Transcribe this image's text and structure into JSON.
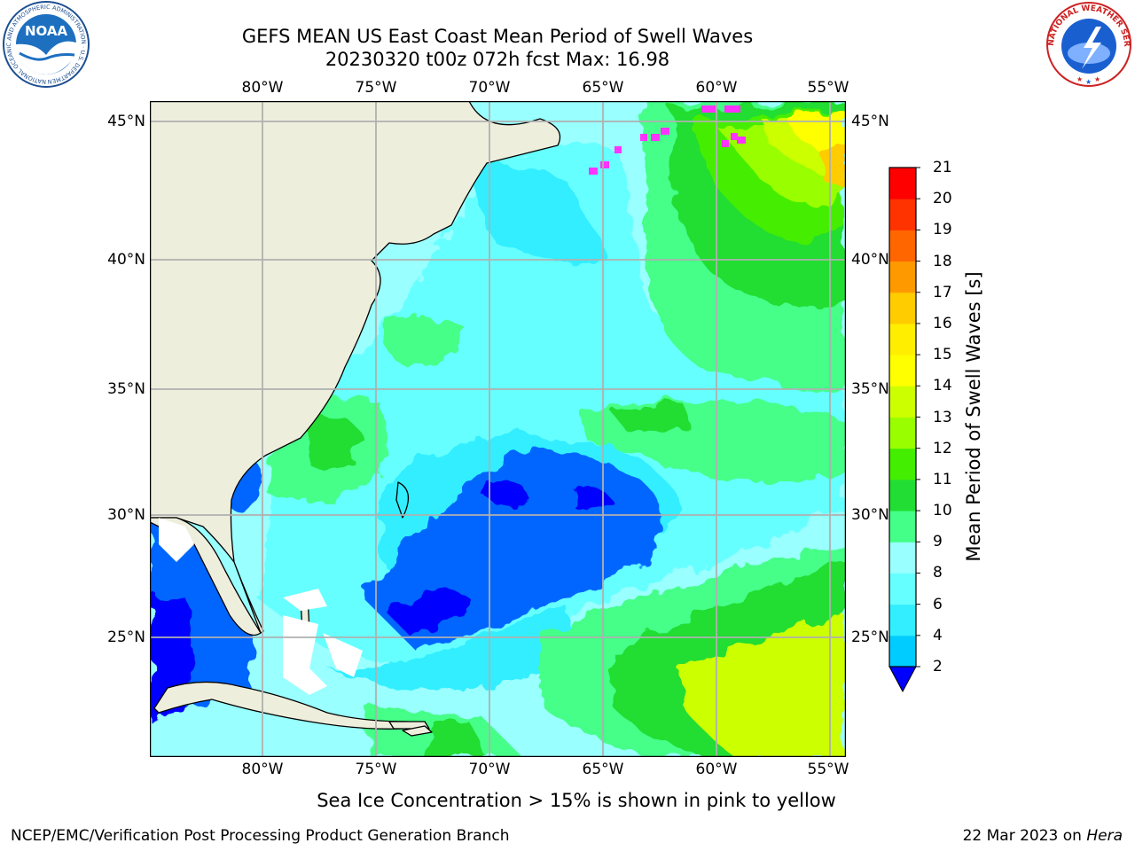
{
  "header": {
    "title_line1": "GEFS MEAN US East Coast Mean Period of Swell Waves",
    "title_line2": "20230320 t00z 072h fcst   Max: 16.98"
  },
  "logos": {
    "noaa_text": "NOAA",
    "noaa_ring_text": "NATIONAL OCEANIC AND ATMOSPHERIC ADMINISTRATION · U.S. DEPARTMENT OF COMMERCE",
    "nws_ring_text": "NATIONAL WEATHER SERVICE"
  },
  "map": {
    "lon_ticks": [
      "80°W",
      "75°W",
      "70°W",
      "65°W",
      "60°W",
      "55°W"
    ],
    "lat_ticks": [
      "45°N",
      "40°N",
      "35°N",
      "30°N",
      "25°N"
    ],
    "grid": true,
    "land_color": "#eeeedd",
    "sea_ice_color": "#ff33ff"
  },
  "colorbar": {
    "title": "Mean Period of Swell Waves [s]",
    "labels": [
      "2",
      "4",
      "6",
      "8",
      "9",
      "10",
      "11",
      "12",
      "13",
      "14",
      "15",
      "16",
      "17",
      "18",
      "19",
      "20",
      "21"
    ],
    "colors": [
      "#0066ff",
      "#00ccff",
      "#33eeff",
      "#66ffff",
      "#99ffff",
      "#44ff88",
      "#22dd33",
      "#44ee00",
      "#99ff00",
      "#ccff00",
      "#ffff00",
      "#ffee00",
      "#ffcc00",
      "#ff9900",
      "#ff6600",
      "#ff3300",
      "#ff0000"
    ],
    "under_color": "#0000ff"
  },
  "footer": {
    "caption": "Sea Ice Concentration > 15% is shown in pink to yellow",
    "credit": "NCEP/EMC/Verification Post Processing Product Generation Branch",
    "date": "22 Mar 2023 on",
    "host": "Hera"
  }
}
